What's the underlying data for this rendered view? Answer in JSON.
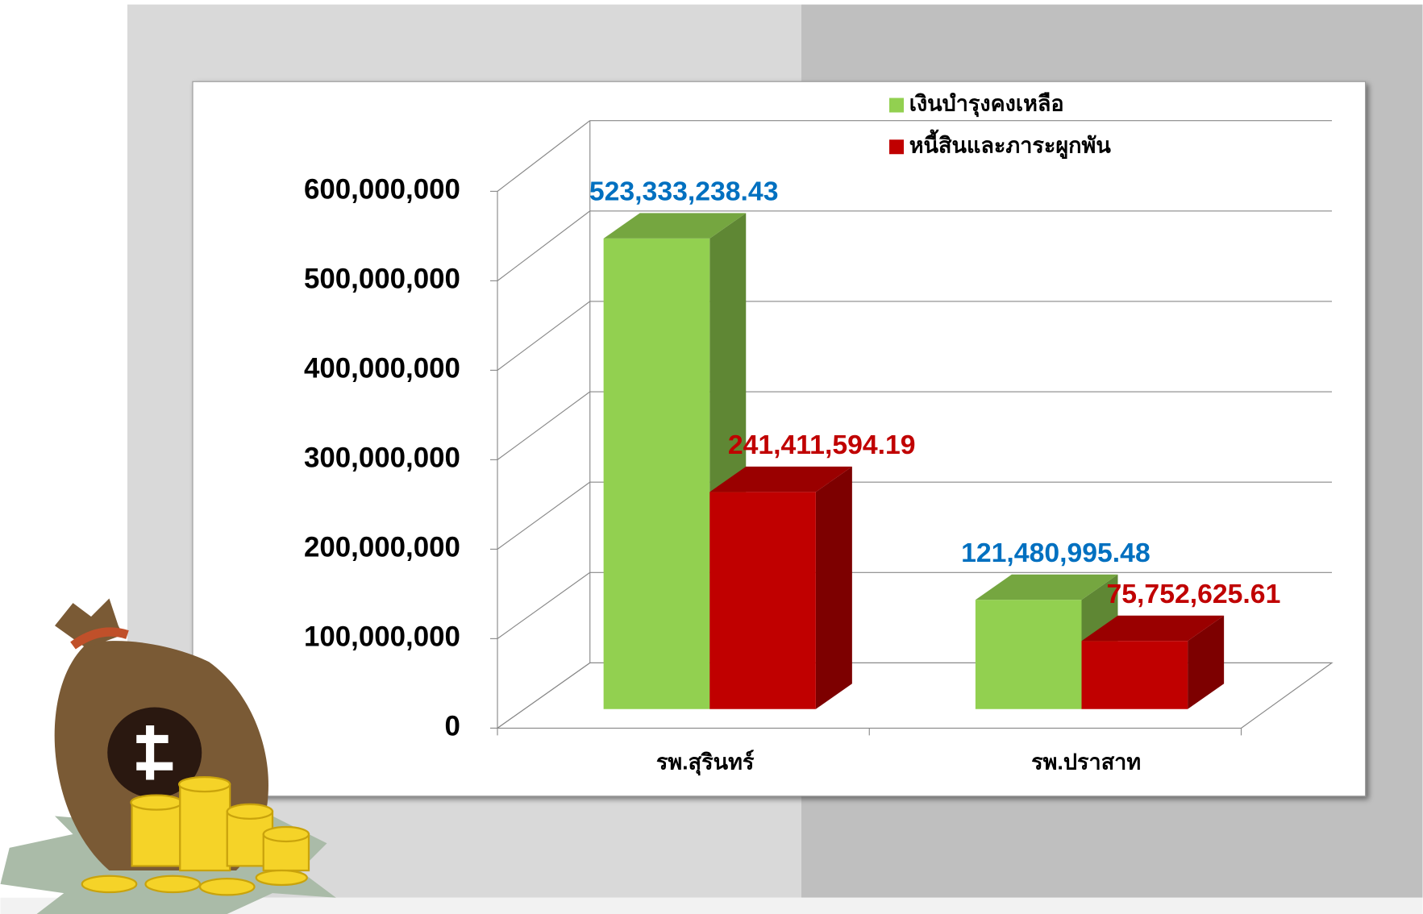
{
  "chart_data": {
    "type": "bar",
    "categories": [
      "รพ.สุรินทร์",
      "รพ.ปราสาท"
    ],
    "series": [
      {
        "name": "เงินบำรุงคงเหลือ",
        "color": "#92d050",
        "values": [
          523333238.43,
          121480995.48
        ],
        "value_labels": [
          "523,333,238.43",
          "121,480,995.48"
        ]
      },
      {
        "name": "หนี้สินและภาระผูกพัน",
        "color": "#c00000",
        "values": [
          241411594.19,
          75752625.61
        ],
        "value_labels": [
          "241,411,594.19",
          "75,752,625.61"
        ]
      }
    ],
    "ylim": [
      0,
      600000000
    ],
    "yticks": [
      0,
      {
        "value": 100000000,
        "label": "100,000,000"
      },
      {
        "value": 200000000,
        "label": "200,000,000"
      },
      {
        "value": 300000000,
        "label": "300,000,000"
      },
      {
        "value": 400000000,
        "label": "400,000,000"
      },
      {
        "value": 500000000,
        "label": "500,000,000"
      },
      {
        "value": 600000000,
        "label": "600,000,000"
      }
    ],
    "grid": true,
    "legend": "top-right"
  }
}
